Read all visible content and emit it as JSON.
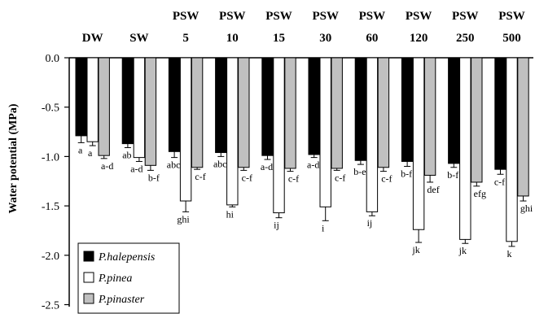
{
  "chart_data": {
    "type": "bar",
    "ylabel": "Water potential  (MPa)",
    "ylim": [
      -2.5,
      0.0
    ],
    "yticks": [
      0.0,
      -0.5,
      -1.0,
      -1.5,
      -2.0,
      -2.5
    ],
    "ytick_labels": [
      "0.0",
      "-0.5",
      "-1.0",
      "-1.5",
      "-2.0",
      "-2.5"
    ],
    "categories": [
      [
        "",
        "DW"
      ],
      [
        "",
        "SW"
      ],
      [
        "PSW",
        "5"
      ],
      [
        "PSW",
        "10"
      ],
      [
        "PSW",
        "15"
      ],
      [
        "PSW",
        "30"
      ],
      [
        "PSW",
        "60"
      ],
      [
        "PSW",
        "120"
      ],
      [
        "PSW",
        "250"
      ],
      [
        "PSW",
        "500"
      ]
    ],
    "series": [
      {
        "name": "P.halepensis",
        "color": "#000000",
        "values": [
          -0.79,
          -0.87,
          -0.95,
          -0.96,
          -0.99,
          -0.98,
          -1.04,
          -1.05,
          -1.07,
          -1.13
        ],
        "errors": [
          0.07,
          0.04,
          0.06,
          0.04,
          0.04,
          0.03,
          0.04,
          0.05,
          0.04,
          0.05
        ],
        "letters": [
          "a",
          "ab",
          "abc",
          "abc",
          "a-d",
          "a-d",
          "b-e",
          "b-f",
          "b-f",
          "c-f"
        ]
      },
      {
        "name": "P.pinea",
        "color": "#ffffff",
        "values": [
          -0.85,
          -1.01,
          -1.45,
          -1.49,
          -1.57,
          -1.51,
          -1.56,
          -1.74,
          -1.84,
          -1.86
        ],
        "errors": [
          0.04,
          0.04,
          0.11,
          0.02,
          0.05,
          0.14,
          0.04,
          0.13,
          0.04,
          0.05
        ],
        "letters": [
          "a",
          "a-d",
          "ghi",
          "hi",
          "ij",
          "i",
          "ij",
          "jk",
          "jk",
          "k"
        ]
      },
      {
        "name": "P.pinaster",
        "color": "#c0c0c0",
        "values": [
          -0.99,
          -1.09,
          -1.11,
          -1.11,
          -1.12,
          -1.12,
          -1.11,
          -1.19,
          -1.26,
          -1.4
        ],
        "errors": [
          0.03,
          0.05,
          0.02,
          0.03,
          0.03,
          0.02,
          0.04,
          0.07,
          0.04,
          0.05
        ],
        "letters": [
          "a-d",
          "b-f",
          "c-f",
          "c-f",
          "c-f",
          "c-f",
          "c-f",
          "def",
          "efg",
          "ghi"
        ]
      }
    ],
    "legend": {
      "placement": "bottom-left"
    }
  }
}
